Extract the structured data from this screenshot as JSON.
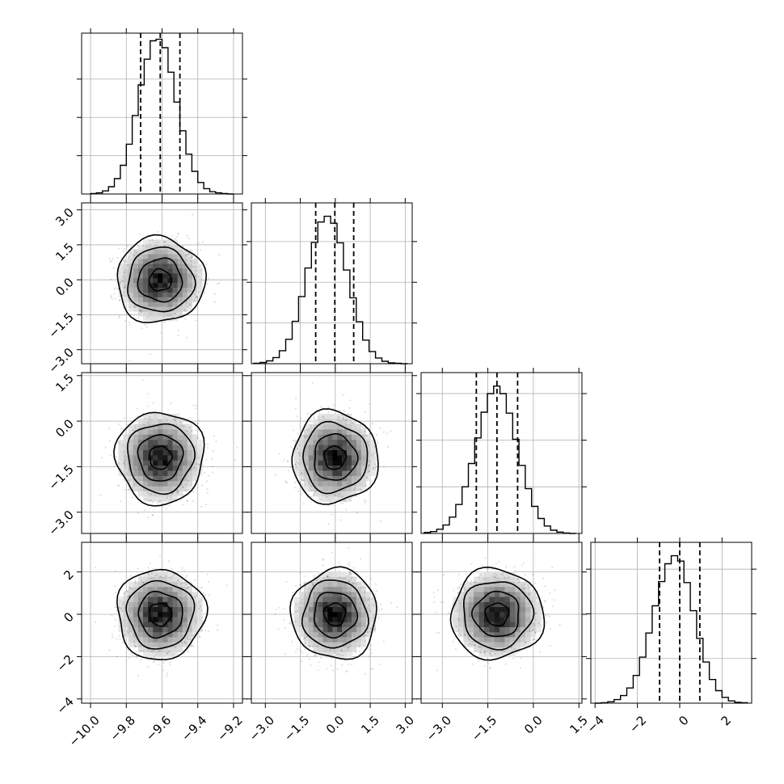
{
  "chart_data": {
    "type": "corner",
    "parameters": [
      {
        "label": "",
        "range": [
          -10.05,
          -9.15
        ],
        "ticks": [
          -10.0,
          -9.8,
          -9.6,
          -9.4,
          -9.2
        ],
        "tick_labels": [
          "−10.0",
          "−9.8",
          "−9.6",
          "−9.4",
          "−9.2"
        ],
        "mean": -9.61,
        "sigma": 0.11,
        "quantiles": [
          -9.72,
          -9.61,
          -9.5
        ]
      },
      {
        "label": "",
        "range": [
          -3.6,
          3.3
        ],
        "ticks": [
          -3.0,
          -1.5,
          0.0,
          1.5,
          3.0
        ],
        "tick_labels": [
          "−3.0",
          "−1.5",
          "0.0",
          "1.5",
          "3.0"
        ],
        "mean": -0.02,
        "sigma": 0.82,
        "quantiles": [
          -0.84,
          -0.02,
          0.79
        ]
      },
      {
        "label": "",
        "range": [
          -3.7,
          1.6
        ],
        "ticks": [
          -3.0,
          -1.5,
          0.0,
          1.5
        ],
        "tick_labels": [
          "−3.0",
          "−1.5",
          "0.0",
          "1.5"
        ],
        "mean": -1.2,
        "sigma": 0.68,
        "quantiles": [
          -1.88,
          -1.2,
          -0.52
        ]
      },
      {
        "label": "",
        "range": [
          -4.2,
          3.4
        ],
        "ticks": [
          -4,
          -2,
          0,
          2
        ],
        "tick_labels": [
          "−4",
          "−2",
          "0",
          "2"
        ],
        "mean": 0.0,
        "sigma": 0.95,
        "quantiles": [
          -0.95,
          0.0,
          0.95
        ]
      }
    ],
    "histograms": [
      {
        "param": 0,
        "edges": [
          -10.0,
          -9.9667,
          -9.9333,
          -9.9,
          -9.8667,
          -9.8333,
          -9.8,
          -9.7667,
          -9.7333,
          -9.7,
          -9.6667,
          -9.6333,
          -9.6,
          -9.5667,
          -9.5333,
          -9.5,
          -9.4667,
          -9.4333,
          -9.4,
          -9.3667,
          -9.3333,
          -9.3,
          -9.2667,
          -9.2333,
          -9.2
        ],
        "counts": [
          1,
          3,
          8,
          19,
          40,
          75,
          130,
          205,
          285,
          352,
          400,
          404,
          382,
          318,
          240,
          165,
          104,
          59,
          30,
          14,
          6,
          3,
          1,
          0
        ],
        "ylim": [
          0,
          420
        ],
        "yticks": [
          100,
          200,
          300
        ]
      },
      {
        "param": 1,
        "edges": [
          -3.5,
          -3.225,
          -2.95,
          -2.675,
          -2.4,
          -2.125,
          -1.85,
          -1.575,
          -1.3,
          -1.025,
          -0.75,
          -0.475,
          -0.2,
          0.075,
          0.35,
          0.625,
          0.9,
          1.175,
          1.45,
          1.725,
          2.0,
          2.275,
          2.55,
          2.825,
          3.1
        ],
        "counts": [
          1,
          3,
          7,
          15,
          32,
          60,
          104,
          165,
          235,
          298,
          348,
          362,
          345,
          297,
          230,
          162,
          103,
          58,
          30,
          14,
          6,
          2,
          1,
          0
        ],
        "ylim": [
          0,
          395
        ],
        "yticks": [
          100,
          200,
          300
        ]
      },
      {
        "param": 2,
        "edges": [
          -3.6,
          -3.3917,
          -3.1833,
          -2.975,
          -2.7667,
          -2.5583,
          -2.35,
          -2.1417,
          -1.9333,
          -1.725,
          -1.5167,
          -1.3083,
          -1.1,
          -0.8917,
          -0.6833,
          -0.475,
          -0.2667,
          -0.0583,
          0.15,
          0.3583,
          0.5667,
          0.775,
          0.9833,
          1.1917,
          1.4
        ],
        "counts": [
          2,
          4,
          9,
          18,
          35,
          62,
          100,
          150,
          205,
          260,
          300,
          316,
          300,
          258,
          202,
          146,
          96,
          58,
          32,
          16,
          7,
          3,
          1,
          0
        ],
        "ylim": [
          0,
          345
        ],
        "yticks": [
          100,
          200,
          300
        ]
      },
      {
        "param": 3,
        "edges": [
          -4.0,
          -3.7,
          -3.4,
          -3.1,
          -2.8,
          -2.5,
          -2.2,
          -1.9,
          -1.6,
          -1.3,
          -1.0,
          -0.7,
          -0.4,
          -0.1,
          0.2,
          0.5,
          0.8,
          1.1,
          1.4,
          1.7,
          2.0,
          2.3,
          2.6,
          2.9,
          3.2
        ],
        "counts": [
          0,
          1,
          3,
          8,
          17,
          34,
          62,
          103,
          157,
          218,
          272,
          312,
          330,
          318,
          270,
          207,
          145,
          92,
          53,
          28,
          13,
          5,
          2,
          1
        ],
        "ylim": [
          0,
          360
        ],
        "yticks": [
          100,
          200,
          300
        ]
      }
    ],
    "pairs": [
      {
        "x_param": 0,
        "y_param": 1,
        "row": 1,
        "col": 0
      },
      {
        "x_param": 0,
        "y_param": 2,
        "row": 2,
        "col": 0
      },
      {
        "x_param": 1,
        "y_param": 2,
        "row": 2,
        "col": 1
      },
      {
        "x_param": 0,
        "y_param": 3,
        "row": 3,
        "col": 0
      },
      {
        "x_param": 1,
        "y_param": 3,
        "row": 3,
        "col": 1
      },
      {
        "x_param": 2,
        "y_param": 3,
        "row": 3,
        "col": 2
      }
    ],
    "contour_levels_sigma": [
      0.5,
      1.0,
      1.5,
      2.0
    ],
    "grid": true,
    "colors": {
      "line": "#000000",
      "grid": "#b0b0b0",
      "points": "#000000",
      "density_dark": "#000000"
    }
  }
}
